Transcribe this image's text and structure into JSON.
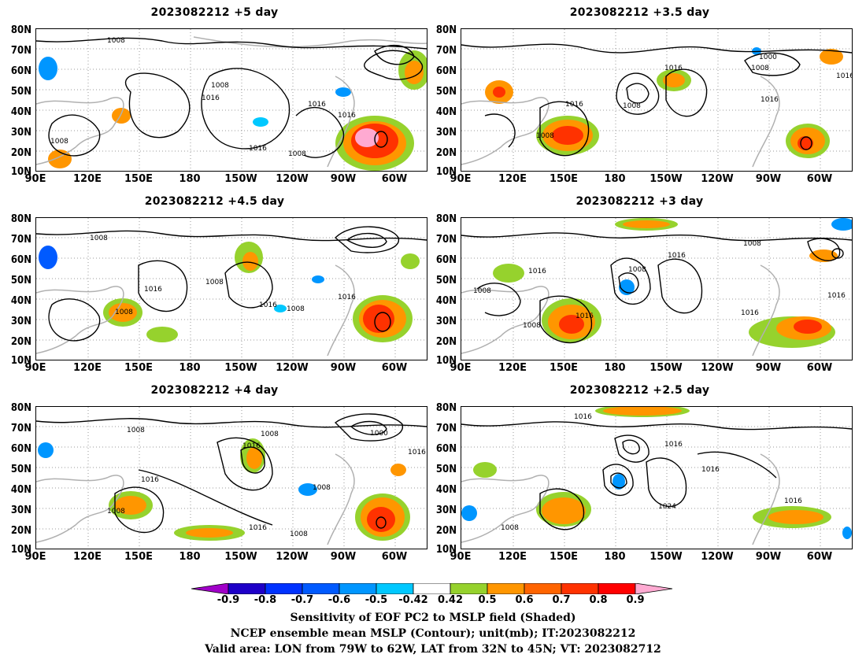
{
  "panels": [
    {
      "title": "2023082212 +5 day"
    },
    {
      "title": "2023082212 +3.5 day"
    },
    {
      "title": "2023082212 +4.5 day"
    },
    {
      "title": "2023082212 +3 day"
    },
    {
      "title": "2023082212 +4 day"
    },
    {
      "title": "2023082212 +2.5 day"
    }
  ],
  "lat_labels": [
    "80N",
    "70N",
    "60N",
    "50N",
    "40N",
    "30N",
    "20N",
    "10N"
  ],
  "lon_labels": [
    "90E",
    "120E",
    "150E",
    "180",
    "150W",
    "120W",
    "90W",
    "60W"
  ],
  "colorbar": {
    "ticks": [
      "-0.9",
      "-0.8",
      "-0.7",
      "-0.6",
      "-0.5",
      "-0.42",
      "0.42",
      "0.5",
      "0.6",
      "0.7",
      "0.8",
      "0.9"
    ],
    "colors": [
      "#a000c8",
      "#1e00c8",
      "#0032ff",
      "#005aff",
      "#0096ff",
      "#00c8ff",
      "#ffffff",
      "#96d22d",
      "#ff9600",
      "#ff6400",
      "#ff3200",
      "#ff0000",
      "#ffaad2"
    ]
  },
  "contour_labels": [
    "1008",
    "1016",
    "1000",
    "1024"
  ],
  "caption": {
    "line1": "Sensitivity of EOF PC2 to MSLP field (Shaded)",
    "line2": "NCEP ensemble mean MSLP (Contour); unit(mb); IT:2023082212",
    "line3": "Valid area: LON from 79W to 62W, LAT from 32N to 45N; VT: 2023082712"
  }
}
